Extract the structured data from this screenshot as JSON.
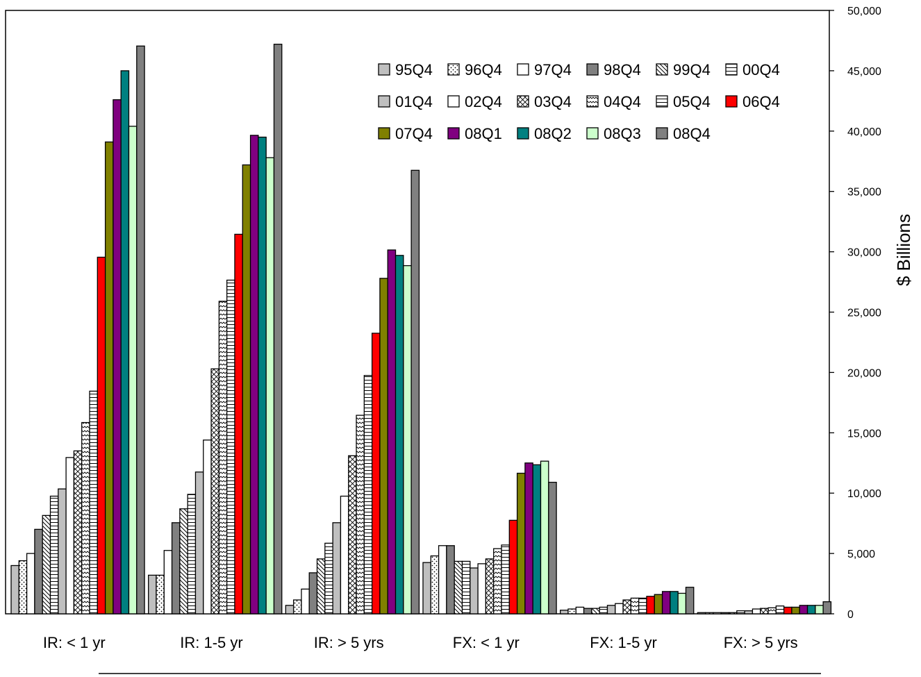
{
  "chart_data": {
    "type": "bar",
    "title": "",
    "xlabel": "",
    "ylabel": "$ Billions",
    "ylim": [
      0,
      50000
    ],
    "y_ticks": [
      0,
      5000,
      10000,
      15000,
      20000,
      25000,
      30000,
      35000,
      40000,
      45000,
      50000
    ],
    "y_tick_labels": [
      "0",
      "5,000",
      "10,000",
      "15,000",
      "20,000",
      "25,000",
      "30,000",
      "35,000",
      "40,000",
      "45,000",
      "50,000"
    ],
    "y_axis_position": "right",
    "grid": false,
    "legend_position": "top-right",
    "categories": [
      "IR: < 1 yr",
      "IR: 1-5 yr",
      "IR: > 5 yrs",
      "FX: < 1 yr",
      "FX: 1-5 yr",
      "FX: > 5 yrs"
    ],
    "series": [
      {
        "name": "95Q4",
        "color": "#bfbfbf",
        "pattern": "solid",
        "values": [
          4000,
          3200,
          700,
          4250,
          300,
          100
        ]
      },
      {
        "name": "96Q4",
        "color": "#ffffff",
        "pattern": "dots",
        "values": [
          4400,
          3200,
          1150,
          4800,
          400,
          100
        ]
      },
      {
        "name": "97Q4",
        "color": "#ffffff",
        "pattern": "solid",
        "values": [
          5000,
          5250,
          2050,
          5650,
          550,
          100
        ]
      },
      {
        "name": "98Q4",
        "color": "#808080",
        "pattern": "solid",
        "values": [
          7000,
          7550,
          3400,
          5650,
          450,
          100
        ]
      },
      {
        "name": "99Q4",
        "color": "#ffffff",
        "pattern": "diag-down",
        "values": [
          8150,
          8700,
          4550,
          4350,
          450,
          100
        ]
      },
      {
        "name": "00Q4",
        "color": "#ffffff",
        "pattern": "hlines",
        "values": [
          9750,
          9900,
          5850,
          4350,
          550,
          250
        ]
      },
      {
        "name": "01Q4",
        "color": "#bfbfbf",
        "pattern": "solid",
        "values": [
          10350,
          11750,
          7550,
          3800,
          700,
          250
        ]
      },
      {
        "name": "02Q4",
        "color": "#ffffff",
        "pattern": "solid",
        "values": [
          12950,
          14400,
          9750,
          4150,
          850,
          400
        ]
      },
      {
        "name": "03Q4",
        "color": "#ffffff",
        "pattern": "cross",
        "values": [
          13500,
          20300,
          13100,
          4550,
          1150,
          450
        ]
      },
      {
        "name": "04Q4",
        "color": "#ffffff",
        "pattern": "wave",
        "values": [
          15850,
          25900,
          16450,
          5400,
          1300,
          500
        ]
      },
      {
        "name": "05Q4",
        "color": "#ffffff",
        "pattern": "hlines",
        "values": [
          18450,
          27650,
          19750,
          5700,
          1300,
          650
        ]
      },
      {
        "name": "06Q4",
        "color": "#ff0000",
        "pattern": "solid",
        "values": [
          29550,
          31450,
          23250,
          7750,
          1450,
          550
        ]
      },
      {
        "name": "07Q4",
        "color": "#808000",
        "pattern": "solid",
        "values": [
          39100,
          37200,
          27800,
          11650,
          1600,
          550
        ]
      },
      {
        "name": "08Q1",
        "color": "#800080",
        "pattern": "solid",
        "values": [
          42600,
          39650,
          30150,
          12500,
          1850,
          700
        ]
      },
      {
        "name": "08Q2",
        "color": "#008080",
        "pattern": "solid",
        "values": [
          45000,
          39500,
          29700,
          12350,
          1850,
          700
        ]
      },
      {
        "name": "08Q3",
        "color": "#ccffcc",
        "pattern": "solid",
        "values": [
          40400,
          37800,
          28850,
          12650,
          1700,
          700
        ]
      },
      {
        "name": "08Q4",
        "color": "#808080",
        "pattern": "solid",
        "values": [
          47050,
          47200,
          36750,
          10900,
          2200,
          1000
        ]
      }
    ]
  }
}
